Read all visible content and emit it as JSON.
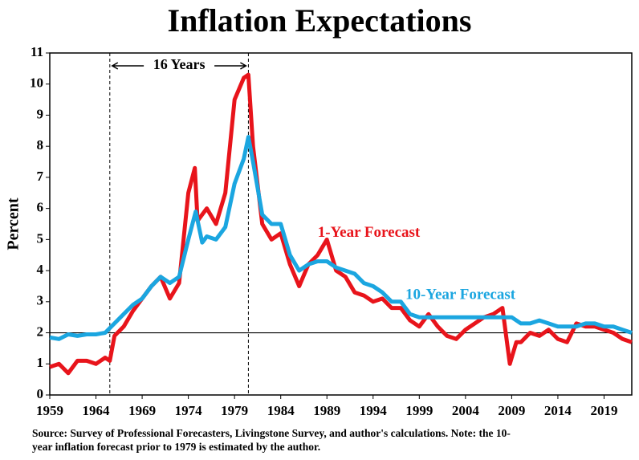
{
  "chart_data": {
    "type": "line",
    "title": "Inflation Expectations",
    "ylabel": "Percent",
    "xlim": [
      1959,
      2022
    ],
    "ylim": [
      0,
      11
    ],
    "xticks": [
      1959,
      1964,
      1969,
      1974,
      1979,
      1984,
      1989,
      1994,
      1999,
      2004,
      2009,
      2014,
      2019
    ],
    "yticks": [
      0,
      1,
      2,
      3,
      4,
      5,
      6,
      7,
      8,
      9,
      10,
      11
    ],
    "grid": false,
    "vlines": [
      1965.5,
      1980.5
    ],
    "hline": 2,
    "span_label": "16 Years",
    "series": [
      {
        "name": "1-Year Forecast",
        "color": "#e8141b",
        "x": [
          1959,
          1960,
          1961,
          1962,
          1963,
          1964,
          1965,
          1965.5,
          1966,
          1967,
          1968,
          1969,
          1970,
          1971,
          1972,
          1973,
          1974,
          1974.7,
          1975,
          1976,
          1977,
          1978,
          1979,
          1980,
          1980.5,
          1981,
          1982,
          1983,
          1984,
          1985,
          1986,
          1987,
          1988,
          1989,
          1990,
          1991,
          1992,
          1993,
          1994,
          1995,
          1996,
          1997,
          1998,
          1999,
          2000,
          2001,
          2002,
          2003,
          2004,
          2005,
          2006,
          2007,
          2008,
          2008.8,
          2009.5,
          2010,
          2011,
          2012,
          2013,
          2014,
          2015,
          2016,
          2017,
          2018,
          2019,
          2020,
          2021,
          2022
        ],
        "values": [
          0.9,
          1.0,
          0.7,
          1.1,
          1.1,
          1.0,
          1.2,
          1.1,
          1.9,
          2.2,
          2.7,
          3.1,
          3.5,
          3.8,
          3.1,
          3.6,
          6.5,
          7.3,
          5.6,
          6.0,
          5.5,
          6.5,
          9.5,
          10.2,
          10.3,
          8.0,
          5.5,
          5.0,
          5.2,
          4.2,
          3.5,
          4.2,
          4.5,
          5.0,
          4.0,
          3.8,
          3.3,
          3.2,
          3.0,
          3.1,
          2.8,
          2.8,
          2.4,
          2.2,
          2.6,
          2.2,
          1.9,
          1.8,
          2.1,
          2.3,
          2.5,
          2.6,
          2.8,
          1.0,
          1.7,
          1.7,
          2.0,
          1.9,
          2.1,
          1.8,
          1.7,
          2.3,
          2.2,
          2.2,
          2.1,
          2.0,
          1.8,
          1.7
        ]
      },
      {
        "name": "10-Year Forecast",
        "color": "#1ba6e0",
        "x": [
          1959,
          1960,
          1961,
          1962,
          1963,
          1964,
          1965,
          1966,
          1967,
          1968,
          1969,
          1970,
          1971,
          1972,
          1973,
          1974,
          1974.8,
          1975.5,
          1976,
          1977,
          1978,
          1979,
          1980,
          1980.5,
          1981,
          1982,
          1983,
          1984,
          1985,
          1986,
          1987,
          1988,
          1989,
          1990,
          1991,
          1992,
          1993,
          1994,
          1995,
          1996,
          1997,
          1998,
          1999,
          2000,
          2001,
          2002,
          2003,
          2004,
          2005,
          2006,
          2007,
          2008,
          2009,
          2010,
          2011,
          2012,
          2013,
          2014,
          2015,
          2016,
          2017,
          2018,
          2019,
          2020,
          2021,
          2022
        ],
        "values": [
          1.85,
          1.8,
          1.95,
          1.9,
          1.95,
          1.95,
          2.0,
          2.3,
          2.6,
          2.9,
          3.1,
          3.5,
          3.8,
          3.6,
          3.8,
          5.0,
          5.9,
          4.9,
          5.1,
          5.0,
          5.4,
          6.8,
          7.6,
          8.3,
          7.5,
          5.8,
          5.5,
          5.5,
          4.5,
          4.0,
          4.2,
          4.3,
          4.3,
          4.1,
          4.0,
          3.9,
          3.6,
          3.5,
          3.3,
          3.0,
          3.0,
          2.6,
          2.5,
          2.5,
          2.5,
          2.5,
          2.5,
          2.5,
          2.5,
          2.5,
          2.5,
          2.5,
          2.5,
          2.3,
          2.3,
          2.4,
          2.3,
          2.2,
          2.2,
          2.2,
          2.3,
          2.3,
          2.2,
          2.2,
          2.1,
          2.0
        ]
      }
    ],
    "source": [
      "Source: Survey of Professional Forecasters, Livingstone Survey, and author's calculations. Note: the 10-",
      "year inflation forecast prior to 1979 is estimated by the author."
    ]
  }
}
